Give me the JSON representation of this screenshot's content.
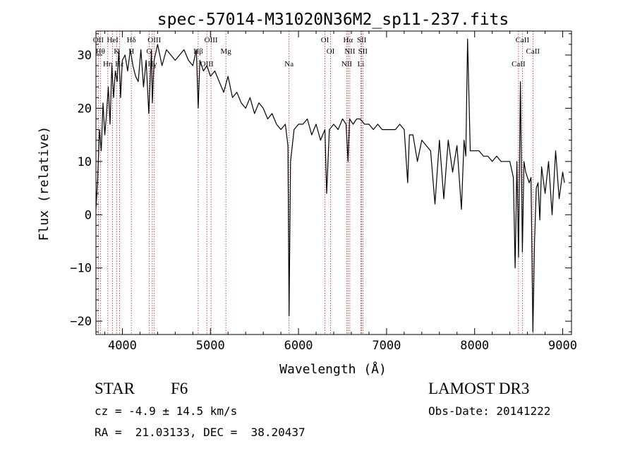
{
  "chart_data": {
    "type": "line",
    "title": "spec-57014-M31020N36M2_sp11-237.fits",
    "xlabel": "Wavelength (Å)",
    "ylabel": "Flux (relative)",
    "xlim": [
      3700,
      9100
    ],
    "ylim": [
      -22.5,
      34.5
    ],
    "xticks": [
      4000,
      5000,
      6000,
      7000,
      8000,
      9000
    ],
    "yticks": [
      -20,
      -10,
      0,
      10,
      20,
      30
    ],
    "grid": false,
    "line_color": "#000000",
    "marker_color": "#b22222",
    "series": [
      {
        "x": [
          3700,
          3720,
          3740,
          3760,
          3780,
          3800,
          3820,
          3840,
          3860,
          3880,
          3900,
          3920,
          3940,
          3960,
          3980,
          4000,
          4030,
          4060,
          4090,
          4120,
          4150,
          4180,
          4210,
          4240,
          4270,
          4300,
          4330,
          4340,
          4360,
          4400,
          4450,
          4500,
          4550,
          4600,
          4650,
          4700,
          4750,
          4800,
          4840,
          4861,
          4880,
          4920,
          4960,
          5000,
          5050,
          5100,
          5150,
          5200,
          5250,
          5300,
          5350,
          5400,
          5450,
          5500,
          5550,
          5600,
          5650,
          5700,
          5750,
          5800,
          5850,
          5880,
          5893,
          5910,
          5950,
          6000,
          6050,
          6100,
          6150,
          6200,
          6250,
          6300,
          6320,
          6350,
          6400,
          6450,
          6500,
          6540,
          6563,
          6580,
          6620,
          6660,
          6700,
          6750,
          6800,
          6850,
          6900,
          6950,
          7000,
          7050,
          7100,
          7150,
          7200,
          7240,
          7260,
          7300,
          7350,
          7400,
          7450,
          7500,
          7550,
          7600,
          7650,
          7700,
          7750,
          7800,
          7850,
          7880,
          7900,
          7920,
          7950,
          8000,
          8050,
          8100,
          8150,
          8200,
          8250,
          8300,
          8350,
          8400,
          8440,
          8460,
          8480,
          8498,
          8520,
          8542,
          8560,
          8580,
          8600,
          8620,
          8640,
          8662,
          8680,
          8700,
          8720,
          8740,
          8760,
          8800,
          8840,
          8880,
          8920,
          8960,
          9000,
          9020
        ],
        "y": [
          1,
          7,
          16,
          12,
          21,
          15,
          19,
          24,
          17,
          28,
          22,
          27,
          25,
          31,
          22,
          29,
          30,
          27,
          31,
          28,
          26,
          25,
          31,
          24,
          29,
          19,
          31,
          21,
          29,
          32,
          28,
          31,
          30,
          29,
          30,
          31,
          29,
          28,
          31,
          20,
          29,
          27,
          28,
          26,
          27,
          25,
          23,
          26,
          22,
          23,
          21,
          20,
          22,
          19,
          21,
          20,
          18,
          19,
          17,
          16,
          17,
          13,
          -19,
          10,
          16,
          17,
          17,
          18,
          15,
          17,
          14,
          16,
          4,
          16,
          17,
          16,
          18,
          17,
          10,
          18,
          17,
          18,
          18,
          17,
          17,
          16,
          17,
          16,
          16,
          16,
          16,
          17,
          16,
          6,
          15,
          15,
          10,
          14,
          13,
          12,
          2,
          14,
          3,
          14,
          8,
          13,
          1,
          14,
          11,
          33,
          12,
          12,
          12,
          11,
          11,
          10,
          11,
          10,
          10,
          10,
          7,
          -10,
          10,
          -8,
          25,
          -7,
          10,
          8,
          7,
          6,
          7,
          -22,
          -5,
          5,
          6,
          -1,
          9,
          4,
          10,
          0,
          12,
          3,
          8,
          6
        ]
      }
    ],
    "lines": [
      {
        "x": 3727,
        "labels": [
          "OII"
        ]
      },
      {
        "x": 3750,
        "labels": [
          "Hθ"
        ]
      },
      {
        "x": 3835,
        "labels": [
          "Hη"
        ]
      },
      {
        "x": 3889,
        "labels": [
          "HeI"
        ]
      },
      {
        "x": 3934,
        "labels": [
          "K"
        ]
      },
      {
        "x": 3968,
        "labels": [
          "Hε"
        ]
      },
      {
        "x": 4102,
        "labels": [
          "Hδ",
          "H"
        ]
      },
      {
        "x": 4304,
        "labels": [
          "G"
        ]
      },
      {
        "x": 4340,
        "labels": [
          "Hγ"
        ]
      },
      {
        "x": 4363,
        "labels": [
          "OIII"
        ]
      },
      {
        "x": 4861,
        "labels": [
          "Hβ"
        ]
      },
      {
        "x": 4959,
        "labels": [
          "OIII"
        ]
      },
      {
        "x": 5007,
        "labels": [
          "OIII"
        ]
      },
      {
        "x": 5175,
        "labels": [
          "Mg"
        ]
      },
      {
        "x": 5893,
        "labels": [
          "Na"
        ]
      },
      {
        "x": 6300,
        "labels": [
          "OI"
        ]
      },
      {
        "x": 6364,
        "labels": [
          "OI"
        ]
      },
      {
        "x": 6548,
        "labels": [
          "NII"
        ]
      },
      {
        "x": 6563,
        "labels": [
          "Hα"
        ]
      },
      {
        "x": 6583,
        "labels": [
          "NII"
        ]
      },
      {
        "x": 6708,
        "labels": [
          "Li"
        ]
      },
      {
        "x": 6717,
        "labels": [
          "SII"
        ]
      },
      {
        "x": 6731,
        "labels": [
          "SII"
        ]
      },
      {
        "x": 8498,
        "labels": [
          "CaII"
        ]
      },
      {
        "x": 8542,
        "labels": [
          "CaII"
        ]
      },
      {
        "x": 8662,
        "labels": [
          "CaII"
        ]
      }
    ]
  },
  "info": {
    "object_class": "STAR",
    "subclass": "F6",
    "survey": "LAMOST DR3",
    "redshift": "cz = -4.9 ± 14.5 km/s",
    "obs_date": "Obs-Date: 20141222",
    "coords": "RA =  21.03133, DEC =  38.20437"
  }
}
